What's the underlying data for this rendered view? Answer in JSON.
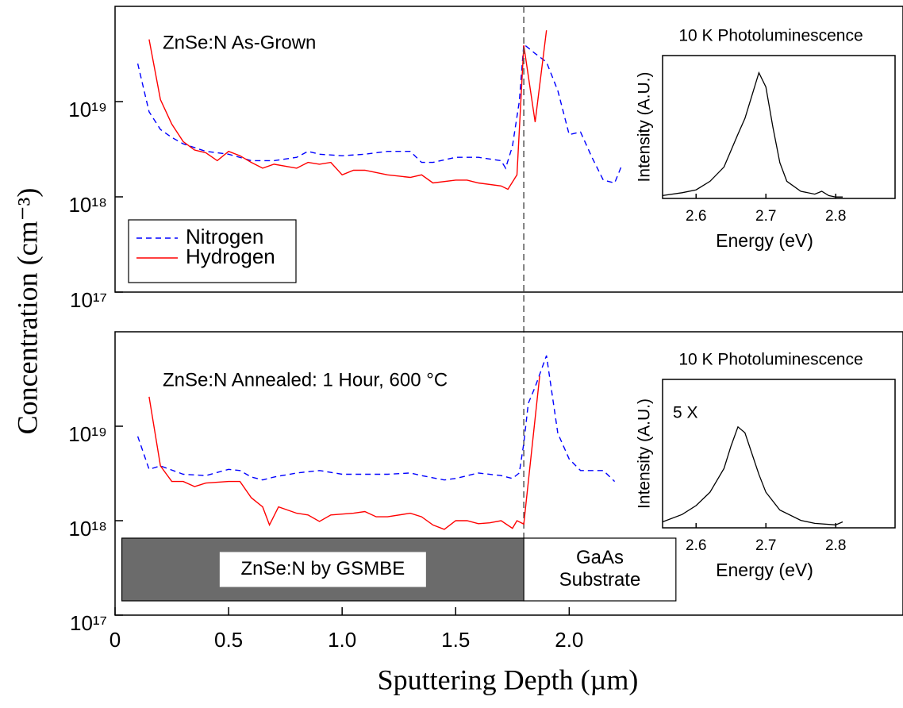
{
  "chart_data": [
    {
      "type": "line",
      "yscale": "log",
      "xlim": [
        0,
        3.47
      ],
      "ylim": [
        1e+17,
        1e+20
      ],
      "yticks": [
        {
          "value": 1e+17,
          "label": "10¹⁷"
        },
        {
          "value": 1e+18,
          "label": "10¹⁸"
        },
        {
          "value": 1e+19,
          "label": "10¹⁹"
        }
      ],
      "ylabel": "Concentration (cm⁻³)",
      "annotations": [
        "ZnSe:N As-Grown"
      ],
      "legend": "lower left",
      "vline": 1.8,
      "series": [
        {
          "name": "Nitrogen",
          "color": "#0000ff",
          "style": "dashed",
          "x": [
            0.1,
            0.15,
            0.2,
            0.25,
            0.3,
            0.4,
            0.5,
            0.6,
            0.7,
            0.8,
            0.85,
            0.9,
            1.0,
            1.1,
            1.2,
            1.3,
            1.35,
            1.4,
            1.5,
            1.6,
            1.7,
            1.72,
            1.75,
            1.78,
            1.8,
            1.85,
            1.9,
            1.95,
            2.0,
            2.05,
            2.1,
            2.15,
            2.2,
            2.23
          ],
          "values": [
            2.5e+19,
            7.8e+18,
            5.1e+18,
            4.2e+18,
            3.6e+18,
            3e+18,
            2.8e+18,
            2.4e+18,
            2.4e+18,
            2.6e+18,
            3e+18,
            2.8e+18,
            2.7e+18,
            2.8e+18,
            3e+18,
            3e+18,
            2.3e+18,
            2.3e+18,
            2.6e+18,
            2.6e+18,
            2.4e+18,
            2e+18,
            3.4e+18,
            1e+19,
            4e+19,
            3.2e+19,
            2.6e+19,
            1.3e+19,
            4.5e+18,
            4.8e+18,
            2.6e+18,
            1.5e+18,
            1.4e+18,
            2.1e+18
          ]
        },
        {
          "name": "Hydrogen",
          "color": "#ff0000",
          "style": "solid",
          "x": [
            0.15,
            0.2,
            0.25,
            0.3,
            0.35,
            0.4,
            0.45,
            0.5,
            0.55,
            0.6,
            0.65,
            0.7,
            0.8,
            0.85,
            0.9,
            0.95,
            1.0,
            1.05,
            1.1,
            1.2,
            1.3,
            1.35,
            1.4,
            1.5,
            1.55,
            1.6,
            1.7,
            1.73,
            1.77,
            1.8,
            1.85,
            1.9
          ],
          "values": [
            4.5e+19,
            1.05e+19,
            5.8e+18,
            3.8e+18,
            3.1e+18,
            2.9e+18,
            2.4e+18,
            3e+18,
            2.7e+18,
            2.3e+18,
            2e+18,
            2.2e+18,
            2e+18,
            2.3e+18,
            2.2e+18,
            2.3e+18,
            1.7e+18,
            1.9e+18,
            1.9e+18,
            1.7e+18,
            1.6e+18,
            1.7e+18,
            1.4e+18,
            1.5e+18,
            1.5e+18,
            1.4e+18,
            1.3e+18,
            1.2e+18,
            1.7e+18,
            3.9e+19,
            6.1e+18,
            5.6e+19
          ]
        }
      ]
    },
    {
      "type": "line",
      "yscale": "log",
      "xlim": [
        0,
        3.47
      ],
      "ylim": [
        1e+17,
        1e+20
      ],
      "xticks": [
        0,
        0.5,
        {
          "value": 1.0,
          "label": "1.0"
        },
        1.5,
        {
          "value": 2.0,
          "label": "2.0"
        }
      ],
      "yticks": [
        {
          "value": 1e+17,
          "label": "10¹⁷"
        },
        {
          "value": 1e+18,
          "label": "10¹⁸"
        },
        {
          "value": 1e+19,
          "label": "10¹⁹"
        }
      ],
      "xlabel": "Sputtering Depth (µm)",
      "annotations": [
        "ZnSe:N Annealed: 1 Hour, 600 °C"
      ],
      "regions": [
        {
          "label": [
            "ZnSe:N by GSMBE"
          ],
          "x": [
            0.03,
            1.8
          ],
          "color": "#6b6b6b"
        },
        {
          "label": [
            "GaAs",
            "Substrate"
          ],
          "x": [
            1.8,
            2.47
          ],
          "color": "#ffffff"
        }
      ],
      "series": [
        {
          "name": "Nitrogen",
          "color": "#0000ff",
          "style": "dashed",
          "x": [
            0.1,
            0.15,
            0.2,
            0.3,
            0.4,
            0.5,
            0.55,
            0.6,
            0.65,
            0.7,
            0.8,
            0.9,
            1.0,
            1.1,
            1.2,
            1.3,
            1.35,
            1.45,
            1.5,
            1.6,
            1.7,
            1.75,
            1.78,
            1.8,
            1.82,
            1.85,
            1.9,
            1.95,
            2.0,
            2.05,
            2.15,
            2.2
          ],
          "values": [
            7.8e+18,
            3.5e+18,
            3.8e+18,
            3.1e+18,
            3e+18,
            3.5e+18,
            3.4e+18,
            2.9e+18,
            2.7e+18,
            2.9e+18,
            3.2e+18,
            3.4e+18,
            3.1e+18,
            3.1e+18,
            3.1e+18,
            3.2e+18,
            3e+18,
            2.7e+18,
            2.8e+18,
            3.2e+18,
            3e+18,
            2.8e+18,
            3.2e+18,
            6.6e+18,
            1.75e+19,
            2.6e+19,
            5.6e+19,
            8.4e+18,
            4.5e+18,
            3.4e+18,
            3.4e+18,
            2.6e+18
          ]
        },
        {
          "name": "Hydrogen",
          "color": "#ff0000",
          "style": "solid",
          "x": [
            0.15,
            0.2,
            0.25,
            0.3,
            0.35,
            0.4,
            0.5,
            0.55,
            0.6,
            0.65,
            0.68,
            0.72,
            0.8,
            0.85,
            0.9,
            0.95,
            1.05,
            1.1,
            1.15,
            1.2,
            1.3,
            1.35,
            1.4,
            1.45,
            1.5,
            1.55,
            1.6,
            1.65,
            1.7,
            1.75,
            1.77,
            1.8,
            1.87
          ],
          "values": [
            2.05e+19,
            3.8e+18,
            2.6e+18,
            2.6e+18,
            2.3e+18,
            2.5e+18,
            2.6e+18,
            2.6e+18,
            1.75e+18,
            1.4e+18,
            9e+17,
            1.4e+18,
            1.2e+18,
            1.15e+18,
            9.8e+17,
            1.15e+18,
            1.2e+18,
            1.25e+18,
            1.1e+18,
            1.1e+18,
            1.2e+18,
            1.1e+18,
            9e+17,
            8.1e+17,
            1e+18,
            1e+18,
            9.3e+17,
            9.5e+17,
            1e+18,
            8.3e+17,
            1e+18,
            9.2e+17,
            3.4e+19
          ]
        }
      ]
    },
    {
      "type": "line",
      "title": "10 K Photoluminescence",
      "xlabel": "Energy (eV)",
      "ylabel": "Intensity (A.U.)",
      "xlim": [
        2.552,
        2.885
      ],
      "ylim": [
        0,
        1
      ],
      "xticks": [
        2.6,
        2.7,
        2.8
      ],
      "series": [
        {
          "color": "#000000",
          "style": "solid",
          "x": [
            2.552,
            2.58,
            2.6,
            2.62,
            2.64,
            2.66,
            2.67,
            2.68,
            2.69,
            2.7,
            2.71,
            2.72,
            2.73,
            2.75,
            2.77,
            2.78,
            2.79,
            2.8,
            2.81
          ],
          "values": [
            0.02,
            0.04,
            0.06,
            0.12,
            0.22,
            0.45,
            0.56,
            0.72,
            0.88,
            0.78,
            0.5,
            0.25,
            0.12,
            0.05,
            0.03,
            0.05,
            0.02,
            0.01,
            0.01
          ]
        }
      ]
    },
    {
      "type": "line",
      "title": "10 K Photoluminescence",
      "xlabel": "Energy (eV)",
      "ylabel": "Intensity (A.U.)",
      "annotations": [
        "5 X"
      ],
      "xlim": [
        2.552,
        2.885
      ],
      "ylim": [
        0,
        1
      ],
      "xticks": [
        2.6,
        2.7,
        2.8
      ],
      "series": [
        {
          "color": "#000000",
          "style": "solid",
          "x": [
            2.552,
            2.58,
            2.6,
            2.62,
            2.64,
            2.65,
            2.66,
            2.67,
            2.68,
            2.69,
            2.7,
            2.72,
            2.75,
            2.77,
            2.8,
            2.81
          ],
          "values": [
            0.04,
            0.09,
            0.15,
            0.24,
            0.4,
            0.55,
            0.68,
            0.64,
            0.5,
            0.36,
            0.24,
            0.12,
            0.05,
            0.03,
            0.02,
            0.04
          ]
        }
      ]
    }
  ]
}
